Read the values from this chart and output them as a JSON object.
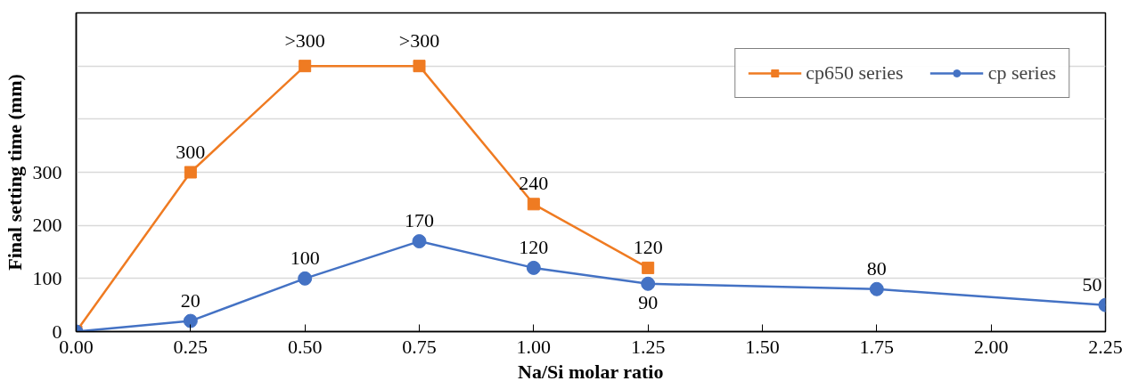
{
  "chart_data": {
    "type": "line",
    "xlabel": "Na/Si molar ratio",
    "ylabel": "Final setting time (mm)",
    "xlim": [
      0,
      2.25
    ],
    "xticks": [
      {
        "value": 0,
        "label": "0.00"
      },
      {
        "value": 0.25,
        "label": "0.25"
      },
      {
        "value": 0.5,
        "label": "0.50"
      },
      {
        "value": 0.75,
        "label": "0.75"
      },
      {
        "value": 1,
        "label": "1.00"
      },
      {
        "value": 1.25,
        "label": "1.25"
      },
      {
        "value": 1.5,
        "label": "1.50"
      },
      {
        "value": 1.75,
        "label": "1.75"
      },
      {
        "value": 2,
        "label": "2.00"
      },
      {
        "value": 2.25,
        "label": "2.25"
      }
    ],
    "ylim": [
      0,
      600
    ],
    "yticks": [
      0,
      100,
      200,
      300,
      {
        "value": 400,
        "label": null
      },
      {
        "value": 500,
        "label": null
      }
    ],
    "grid": "y",
    "legend": "top right",
    "series": [
      {
        "name": "cp650 series",
        "color": "#ef7b22",
        "marker": "square",
        "x": [
          0,
          0.25,
          0.5,
          0.75,
          1,
          1.25
        ],
        "values": [
          0,
          300,
          500,
          500,
          240,
          120
        ],
        "value_labels": [
          null,
          "300",
          ">300",
          ">300",
          "240",
          "120"
        ]
      },
      {
        "name": "cp series",
        "color": "#4472c4",
        "marker": "circle",
        "x": [
          0,
          0.25,
          0.5,
          0.75,
          1,
          1.25,
          1.75,
          2.25
        ],
        "values": [
          0,
          20,
          100,
          170,
          120,
          90,
          80,
          50
        ],
        "value_labels": [
          null,
          "20",
          "100",
          "170",
          "120",
          "90",
          "80",
          "50"
        ]
      }
    ]
  }
}
